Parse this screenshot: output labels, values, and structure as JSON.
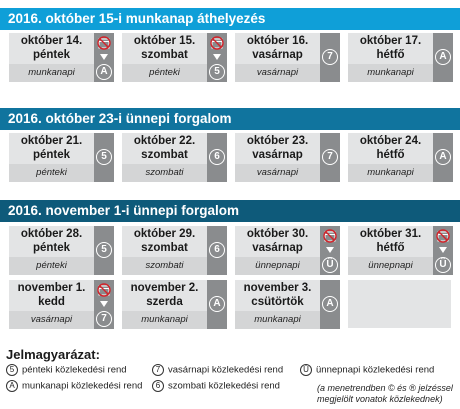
{
  "sections": [
    {
      "title": "2016. október 15-i munkanap áthelyezés",
      "cells": [
        {
          "date": "október 14.",
          "day": "péntek",
          "type": "munkanapi",
          "badge": "A",
          "changed": true
        },
        {
          "date": "október 15.",
          "day": "szombat",
          "type": "pénteki",
          "badge": "5",
          "changed": true
        },
        {
          "date": "október 16.",
          "day": "vasárnap",
          "type": "vasárnapi",
          "badge": "7",
          "changed": false
        },
        {
          "date": "október 17.",
          "day": "hétfő",
          "type": "munkanapi",
          "badge": "A",
          "changed": false
        }
      ]
    },
    {
      "title": "2016. október 23-i ünnepi forgalom",
      "cells": [
        {
          "date": "október 21.",
          "day": "péntek",
          "type": "pénteki",
          "badge": "5",
          "changed": false
        },
        {
          "date": "október 22.",
          "day": "szombat",
          "type": "szombati",
          "badge": "6",
          "changed": false
        },
        {
          "date": "október 23.",
          "day": "vasárnap",
          "type": "vasárnapi",
          "badge": "7",
          "changed": false
        },
        {
          "date": "október 24.",
          "day": "hétfő",
          "type": "munkanapi",
          "badge": "A",
          "changed": false
        }
      ]
    },
    {
      "title": "2016. november 1-i ünnepi forgalom",
      "cells": [
        {
          "date": "október 28.",
          "day": "péntek",
          "type": "pénteki",
          "badge": "5",
          "changed": false
        },
        {
          "date": "október 29.",
          "day": "szombat",
          "type": "szombati",
          "badge": "6",
          "changed": false
        },
        {
          "date": "október 30.",
          "day": "vasárnap",
          "type": "ünnepnapi",
          "badge": "Ü",
          "changed": true
        },
        {
          "date": "október 31.",
          "day": "hétfő",
          "type": "ünnepnapi",
          "badge": "Ü",
          "changed": true
        },
        {
          "date": "november 1.",
          "day": "kedd",
          "type": "vasárnapi",
          "badge": "7",
          "changed": true
        },
        {
          "date": "november 2.",
          "day": "szerda",
          "type": "munkanapi",
          "badge": "A",
          "changed": false
        },
        {
          "date": "november 3.",
          "day": "csütörtök",
          "type": "munkanapi",
          "badge": "A",
          "changed": false
        }
      ]
    }
  ],
  "legend": {
    "title": "Jelmagyarázat:",
    "items": [
      {
        "badge": "5",
        "text": "pénteki közlekedési rend"
      },
      {
        "badge": "A",
        "text": "munkanapi közlekedési rend"
      },
      {
        "badge": "7",
        "text": "vasárnapi közlekedési rend"
      },
      {
        "badge": "6",
        "text": "szombati közlekedési rend"
      },
      {
        "badge": "Ü",
        "text": "ünnepnapi közlekedési rend"
      }
    ],
    "note": "(a menetrendben © és ® jelzéssel megjelölt vonatok közlekednek)"
  },
  "colors": {
    "section1": "#0f9fd8",
    "section2": "#10749e",
    "section3": "#0e5a7a",
    "cell_bg": "#e3e4e5",
    "badge_bg": "#8a8c8e",
    "nochange_red": "#d2232a"
  },
  "icons": {
    "changed": "crossed-out-calendar-icon",
    "arrow": "arrow-down-icon"
  }
}
